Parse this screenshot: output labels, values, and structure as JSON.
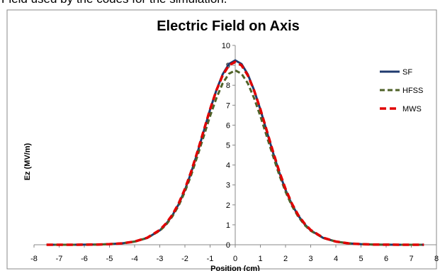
{
  "page": {
    "top_text_fragment": "Field used by the codes for the simulation."
  },
  "chart_data": {
    "type": "line",
    "title": "Electric Field on Axis",
    "xlabel": "Position (cm)",
    "ylabel": "Ez (MV/m)",
    "xlim": [
      -8,
      8
    ],
    "ylim": [
      0,
      10
    ],
    "x_ticks": [
      "-8",
      "-7",
      "-6",
      "-5",
      "-4",
      "-3",
      "-2",
      "-1",
      "0",
      "1",
      "2",
      "3",
      "4",
      "5",
      "6",
      "7",
      "8"
    ],
    "y_ticks": [
      "0",
      "1",
      "2",
      "3",
      "4",
      "5",
      "6",
      "7",
      "8",
      "9",
      "10"
    ],
    "grid": false,
    "legend_position": "right",
    "series": [
      {
        "name": "SF",
        "color": "#1f3a6e",
        "dash": "solid",
        "x": [
          -7.5,
          -6.5,
          -5.5,
          -5,
          -4.5,
          -4,
          -3.5,
          -3,
          -2.75,
          -2.5,
          -2.25,
          -2,
          -1.75,
          -1.5,
          -1.25,
          -1,
          -0.75,
          -0.5,
          -0.25,
          0,
          0.25,
          0.5,
          0.75,
          1,
          1.25,
          1.5,
          1.75,
          2,
          2.25,
          2.5,
          2.75,
          3,
          3.5,
          4,
          4.5,
          5,
          5.5,
          6.5,
          7.5
        ],
        "y": [
          0.0,
          0.0,
          0.01,
          0.03,
          0.07,
          0.16,
          0.34,
          0.72,
          1.04,
          1.47,
          2.03,
          2.75,
          3.63,
          4.63,
          5.7,
          6.78,
          7.75,
          8.55,
          9.07,
          9.25,
          9.07,
          8.55,
          7.75,
          6.78,
          5.7,
          4.63,
          3.63,
          2.75,
          2.03,
          1.47,
          1.04,
          0.72,
          0.34,
          0.16,
          0.07,
          0.03,
          0.01,
          0.0,
          0.0
        ]
      },
      {
        "name": "HFSS",
        "color": "#4f6228",
        "dash": "7,4",
        "x": [
          -7.5,
          -6.5,
          -5.5,
          -5,
          -4.5,
          -4,
          -3.5,
          -3,
          -2.75,
          -2.5,
          -2.25,
          -2,
          -1.75,
          -1.5,
          -1.25,
          -1,
          -0.75,
          -0.5,
          -0.25,
          0,
          0.25,
          0.5,
          0.75,
          1,
          1.25,
          1.5,
          1.75,
          2,
          2.25,
          2.5,
          2.75,
          3,
          3.5,
          4,
          4.5,
          5,
          5.5,
          6.5,
          7.5
        ],
        "y": [
          0.0,
          0.0,
          0.01,
          0.03,
          0.07,
          0.16,
          0.34,
          0.7,
          1.0,
          1.42,
          1.96,
          2.66,
          3.5,
          4.46,
          5.45,
          6.45,
          7.35,
          8.1,
          8.58,
          8.75,
          8.58,
          8.1,
          7.35,
          6.45,
          5.45,
          4.46,
          3.5,
          2.66,
          1.96,
          1.42,
          1.0,
          0.7,
          0.34,
          0.16,
          0.07,
          0.03,
          0.01,
          0.0,
          0.0
        ]
      },
      {
        "name": "MWS",
        "color": "#e00000",
        "dash": "9,5",
        "x": [
          -7.5,
          -6.5,
          -5.5,
          -5,
          -4.5,
          -4,
          -3.5,
          -3,
          -2.75,
          -2.5,
          -2.25,
          -2,
          -1.75,
          -1.5,
          -1.25,
          -1,
          -0.75,
          -0.5,
          -0.25,
          0,
          0.25,
          0.5,
          0.75,
          1,
          1.25,
          1.5,
          1.75,
          2,
          2.25,
          2.5,
          2.75,
          3,
          3.5,
          4,
          4.5,
          5,
          5.5,
          6.5,
          7.5
        ],
        "y": [
          0.0,
          0.0,
          0.01,
          0.03,
          0.07,
          0.16,
          0.35,
          0.74,
          1.07,
          1.5,
          2.07,
          2.8,
          3.68,
          4.68,
          5.74,
          6.8,
          7.74,
          8.5,
          9.0,
          9.17,
          9.0,
          8.5,
          7.74,
          6.8,
          5.74,
          4.68,
          3.68,
          2.8,
          2.07,
          1.5,
          1.07,
          0.74,
          0.35,
          0.16,
          0.07,
          0.03,
          0.01,
          0.0,
          0.0
        ]
      }
    ]
  }
}
